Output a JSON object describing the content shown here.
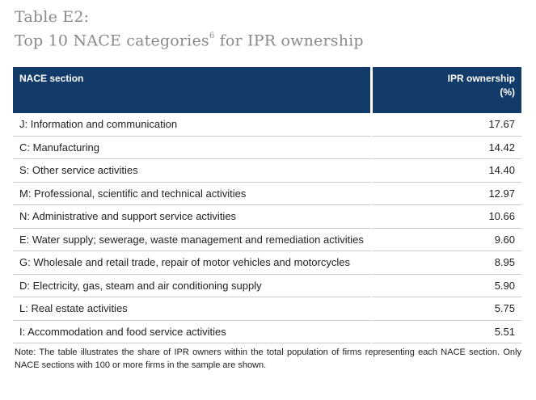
{
  "title": {
    "line1": "Table E2:",
    "line2": "Top 10 NACE categories",
    "footnote_ref": "6",
    "line2_suffix": " for IPR ownership"
  },
  "table": {
    "headers": {
      "section": "NACE section",
      "ipr_line1": "IPR ownership",
      "ipr_line2": "(%)"
    },
    "rows": [
      {
        "section": "J: Information and communication",
        "value": "17.67"
      },
      {
        "section": "C: Manufacturing",
        "value": "14.42"
      },
      {
        "section": "S: Other service activities",
        "value": "14.40"
      },
      {
        "section": "M: Professional, scientific and technical activities",
        "value": "12.97"
      },
      {
        "section": "N: Administrative and support service activities",
        "value": "10.66"
      },
      {
        "section": "E: Water supply; sewerage, waste management and remediation activities",
        "value": "9.60"
      },
      {
        "section": "G: Wholesale and retail trade, repair of motor vehicles and motorcycles",
        "value": "8.95"
      },
      {
        "section": "D: Electricity, gas, steam and air conditioning supply",
        "value": "5.90"
      },
      {
        "section": "L: Real estate activities",
        "value": "5.75"
      },
      {
        "section": "I: Accommodation and food service activities",
        "value": "5.51"
      }
    ]
  },
  "note": "Note: The table illustrates the share of IPR owners within the total population of firms representing each NACE section. Only NACE sections with 100 or more firms in the sample are shown.",
  "colors": {
    "header_bg": "#123b69",
    "title_gray": "#8a8a8a"
  }
}
